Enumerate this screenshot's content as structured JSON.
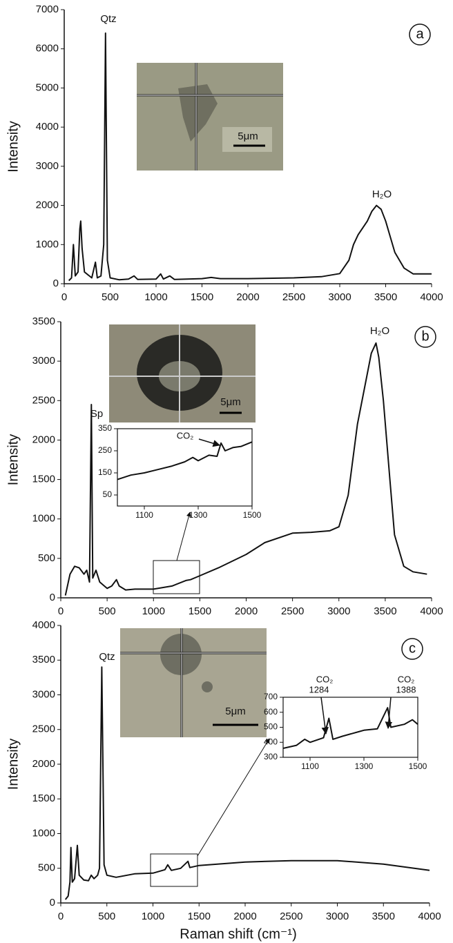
{
  "chart_data": [
    {
      "type": "line",
      "panel_label": "a",
      "y_label": "Intensity",
      "color": "#111111",
      "annotations": [
        "Qtz",
        "H₂O"
      ],
      "image_scale": "5μm",
      "xlim": [
        0,
        4000
      ],
      "xticks": [
        0,
        500,
        1000,
        1500,
        2000,
        2500,
        3000,
        3500,
        4000
      ],
      "ylim": [
        0,
        7000
      ],
      "yticks": [
        0,
        1000,
        2000,
        3000,
        4000,
        5000,
        6000,
        7000
      ],
      "x": [
        50,
        80,
        100,
        120,
        150,
        170,
        180,
        195,
        220,
        300,
        340,
        360,
        400,
        430,
        450,
        470,
        500,
        600,
        700,
        760,
        800,
        1000,
        1050,
        1080,
        1150,
        1200,
        1500,
        1600,
        1700,
        2000,
        2500,
        2800,
        3000,
        3100,
        3150,
        3200,
        3300,
        3350,
        3400,
        3450,
        3500,
        3550,
        3600,
        3700,
        3800,
        3900,
        4000
      ],
      "values": [
        80,
        150,
        1000,
        200,
        300,
        1400,
        1600,
        900,
        300,
        150,
        550,
        150,
        200,
        1000,
        6400,
        600,
        150,
        100,
        120,
        200,
        110,
        120,
        250,
        120,
        200,
        110,
        130,
        160,
        130,
        130,
        150,
        180,
        260,
        600,
        1000,
        1250,
        1600,
        1850,
        2000,
        1900,
        1600,
        1200,
        800,
        400,
        250,
        250,
        250
      ]
    },
    {
      "type": "line",
      "panel_label": "b",
      "y_label": "Intensity",
      "color": "#111111",
      "annotations": [
        "Sp",
        "H₂O"
      ],
      "image_scale": "5μm",
      "xlim": [
        0,
        4000
      ],
      "xticks": [
        0,
        500,
        1000,
        1500,
        2000,
        2500,
        3000,
        3500,
        4000
      ],
      "ylim": [
        0,
        3500
      ],
      "yticks": [
        0,
        500,
        1000,
        1500,
        2000,
        2500,
        3000,
        3500
      ],
      "x": [
        50,
        100,
        150,
        200,
        250,
        280,
        310,
        330,
        345,
        380,
        420,
        500,
        550,
        600,
        630,
        700,
        800,
        1000,
        1200,
        1350,
        1400,
        1500,
        1700,
        2000,
        2200,
        2500,
        2700,
        2900,
        3000,
        3100,
        3200,
        3300,
        3350,
        3400,
        3430,
        3480,
        3550,
        3600,
        3700,
        3800,
        3950
      ],
      "values": [
        30,
        300,
        400,
        380,
        300,
        350,
        200,
        2450,
        250,
        350,
        200,
        120,
        150,
        230,
        150,
        100,
        110,
        110,
        150,
        220,
        230,
        280,
        380,
        550,
        700,
        820,
        830,
        850,
        900,
        1300,
        2200,
        2800,
        3100,
        3230,
        3050,
        2500,
        1500,
        800,
        400,
        330,
        300
      ]
    },
    {
      "type": "line",
      "color": "#111111",
      "annotations": [
        "CO₂"
      ],
      "xlim": [
        1000,
        1500
      ],
      "xticks": [
        1100,
        1300,
        1500
      ],
      "ylim": [
        0,
        350
      ],
      "yticks": [
        50,
        150,
        250,
        350
      ],
      "x": [
        1000,
        1050,
        1100,
        1150,
        1200,
        1250,
        1280,
        1300,
        1340,
        1370,
        1385,
        1400,
        1430,
        1460,
        1500
      ],
      "values": [
        120,
        140,
        150,
        165,
        180,
        200,
        220,
        205,
        230,
        225,
        285,
        250,
        265,
        270,
        290
      ]
    },
    {
      "type": "line",
      "panel_label": "c",
      "y_label": "Intensity",
      "x_label": "Raman shift (cm⁻¹)",
      "color": "#111111",
      "annotations": [
        "Qtz"
      ],
      "image_scale": "5μm",
      "xlim": [
        0,
        4000
      ],
      "xticks": [
        0,
        500,
        1000,
        1500,
        2000,
        2500,
        3000,
        3500,
        4000
      ],
      "ylim": [
        0,
        4000
      ],
      "yticks": [
        0,
        500,
        1000,
        1500,
        2000,
        2500,
        3000,
        3500,
        4000
      ],
      "x": [
        50,
        80,
        100,
        110,
        125,
        150,
        180,
        200,
        250,
        300,
        330,
        360,
        400,
        420,
        445,
        470,
        500,
        600,
        800,
        1000,
        1130,
        1160,
        1200,
        1300,
        1380,
        1400,
        1500,
        2000,
        2500,
        3000,
        3500,
        4000
      ],
      "values": [
        50,
        100,
        300,
        800,
        300,
        350,
        830,
        400,
        330,
        320,
        400,
        350,
        400,
        500,
        3400,
        550,
        400,
        370,
        420,
        430,
        480,
        550,
        470,
        500,
        600,
        510,
        540,
        590,
        610,
        610,
        560,
        470
      ]
    },
    {
      "type": "line",
      "color": "#111111",
      "annotations": [
        "CO₂",
        "1284",
        "CO₂",
        "1388"
      ],
      "xlim": [
        1000,
        1500
      ],
      "xticks": [
        1100,
        1300,
        1500
      ],
      "ylim": [
        300,
        700
      ],
      "yticks": [
        300,
        400,
        500,
        600,
        700
      ],
      "x": [
        1000,
        1050,
        1080,
        1100,
        1150,
        1170,
        1185,
        1220,
        1280,
        1300,
        1350,
        1388,
        1400,
        1450,
        1480,
        1500
      ],
      "values": [
        360,
        380,
        420,
        400,
        430,
        560,
        420,
        440,
        470,
        480,
        490,
        630,
        500,
        520,
        550,
        520
      ]
    }
  ]
}
